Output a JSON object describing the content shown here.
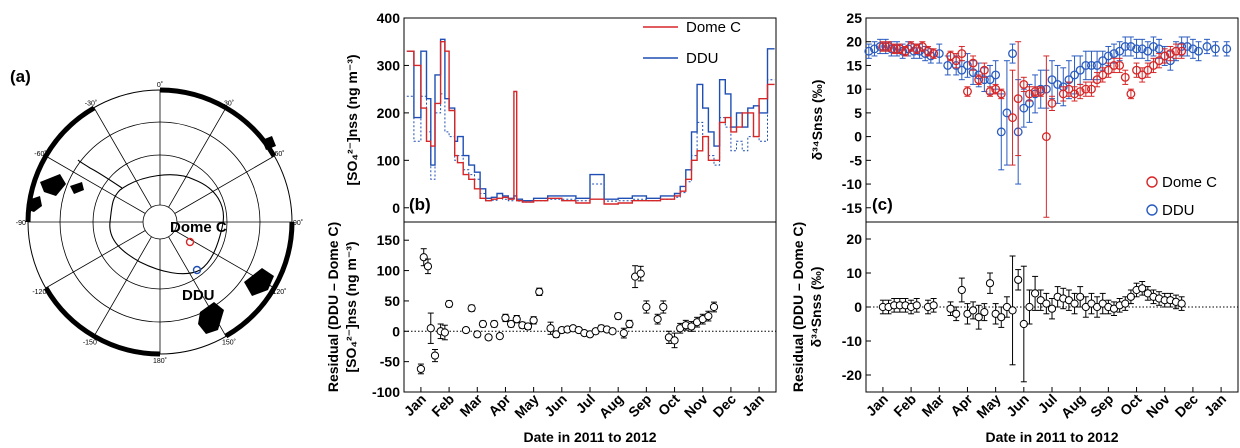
{
  "panels": {
    "a": {
      "label": "(a)"
    },
    "b": {
      "label": "(b)"
    },
    "c": {
      "label": "(c)"
    }
  },
  "map": {
    "station_1": "Dome C",
    "station_2": "DDU",
    "lon_ticks": [
      "0˚",
      "30˚",
      "60˚",
      "90˚",
      "120˚",
      "150˚",
      "180˚",
      "-150˚",
      "-120˚",
      "-90˚",
      "-60˚",
      "-30˚"
    ],
    "colors": {
      "dome_c": "#d62728",
      "ddu": "#1f4fb4",
      "land": "#000000"
    }
  },
  "chart_data": [
    {
      "id": "b_top",
      "type": "line",
      "ylabel": "[SO₄²⁻]nss (ng m⁻³)",
      "ylim": [
        -30,
        400
      ],
      "yticks": [
        0,
        100,
        200,
        300,
        400
      ],
      "xlim": [
        -0.6,
        12.6
      ],
      "legend": {
        "placement": "top-right",
        "entries": [
          "Dome C",
          "DDU"
        ]
      },
      "series": [
        {
          "name": "Dome C",
          "color": "#d62728",
          "x": [
            -0.5,
            -0.25,
            0,
            0.2,
            0.35,
            0.5,
            0.7,
            0.85,
            1.0,
            1.2,
            1.3,
            1.5,
            1.7,
            1.9,
            2.1,
            2.3,
            2.5,
            2.7,
            2.9,
            3.1,
            3.3,
            3.4,
            3.6,
            4.0,
            4.5,
            5.0,
            5.5,
            6.0,
            6.5,
            7.0,
            7.5,
            8.0,
            8.5,
            9.0,
            9.2,
            9.4,
            9.6,
            9.8,
            10.0,
            10.2,
            10.4,
            10.6,
            10.8,
            11.0,
            11.2,
            11.4,
            11.6,
            11.8,
            12.0,
            12.3
          ],
          "values": [
            330,
            300,
            210,
            140,
            130,
            220,
            350,
            330,
            205,
            110,
            95,
            70,
            60,
            40,
            20,
            15,
            18,
            20,
            22,
            18,
            245,
            15,
            12,
            15,
            20,
            15,
            10,
            18,
            8,
            10,
            15,
            15,
            18,
            25,
            35,
            60,
            100,
            120,
            150,
            100,
            100,
            180,
            190,
            160,
            170,
            200,
            200,
            150,
            230,
            260
          ]
        },
        {
          "name": "DDU",
          "color": "#1f4fb4",
          "x": [
            -0.5,
            -0.25,
            0,
            0.2,
            0.35,
            0.5,
            0.7,
            0.85,
            1.0,
            1.2,
            1.3,
            1.5,
            1.7,
            1.9,
            2.1,
            2.3,
            2.5,
            2.7,
            2.9,
            3.1,
            3.3,
            3.4,
            3.6,
            4.0,
            4.5,
            5.0,
            5.5,
            6.0,
            6.5,
            7.0,
            7.5,
            8.0,
            8.5,
            9.0,
            9.2,
            9.4,
            9.6,
            9.8,
            10.0,
            10.2,
            10.4,
            10.6,
            10.8,
            11.0,
            11.2,
            11.4,
            11.6,
            11.8,
            12.0,
            12.3
          ],
          "values": [
            330,
            190,
            330,
            230,
            90,
            280,
            355,
            230,
            210,
            140,
            150,
            110,
            90,
            75,
            40,
            20,
            22,
            30,
            25,
            20,
            25,
            18,
            15,
            20,
            25,
            25,
            20,
            70,
            18,
            20,
            25,
            20,
            25,
            30,
            45,
            80,
            160,
            260,
            210,
            160,
            130,
            270,
            240,
            170,
            200,
            170,
            210,
            215,
            200,
            335
          ]
        },
        {
          "name": "DDU (dotted)",
          "color": "#1f4fb4",
          "x": [
            -0.5,
            -0.25,
            0,
            0.2,
            0.35,
            0.5,
            0.7,
            0.85,
            1.0,
            1.2,
            1.3,
            1.5,
            1.7,
            1.9,
            2.1,
            2.3,
            2.5,
            2.7,
            2.9,
            3.1,
            3.3,
            3.4,
            3.6,
            4.0,
            4.5,
            5.0,
            5.5,
            6.0,
            6.5,
            7.0,
            7.5,
            8.0,
            8.5,
            9.0,
            9.2,
            9.4,
            9.6,
            9.8,
            10.0,
            10.2,
            10.4,
            10.6,
            10.8,
            11.0,
            11.2,
            11.4,
            11.6,
            11.8,
            12.0,
            12.3
          ],
          "values": [
            235,
            140,
            235,
            160,
            60,
            200,
            240,
            160,
            150,
            100,
            110,
            80,
            70,
            60,
            30,
            15,
            16,
            20,
            18,
            15,
            20,
            14,
            12,
            15,
            18,
            18,
            15,
            50,
            14,
            15,
            18,
            15,
            18,
            22,
            32,
            55,
            110,
            180,
            150,
            110,
            90,
            190,
            170,
            120,
            140,
            120,
            150,
            150,
            140,
            270
          ]
        }
      ]
    },
    {
      "id": "b_bottom",
      "type": "scatter",
      "xlabel": "Date in 2011 to 2012",
      "ylabel": "Residual (DDU – Dome C)",
      "ylabel2": "[SO₄²⁻]nss (ng m⁻³)",
      "ylim": [
        -100,
        180
      ],
      "yticks": [
        -100,
        -50,
        0,
        50,
        100,
        150
      ],
      "categories": [
        "Jan",
        "Feb",
        "Mar",
        "Apr",
        "May",
        "Jun",
        "Jul",
        "Aug",
        "Sep",
        "Oct",
        "Nov",
        "Dec",
        "Jan"
      ],
      "series": [
        {
          "name": "Residual",
          "color": "#000000",
          "x": [
            0.0,
            0.1,
            0.25,
            0.35,
            0.5,
            0.7,
            0.85,
            1.0,
            1.6,
            1.8,
            2.0,
            2.2,
            2.4,
            2.6,
            2.8,
            3.0,
            3.2,
            3.4,
            3.6,
            3.8,
            4.0,
            4.2,
            4.6,
            4.8,
            5.0,
            5.2,
            5.4,
            5.6,
            5.8,
            6.0,
            6.2,
            6.4,
            6.6,
            6.8,
            7.0,
            7.2,
            7.4,
            7.6,
            7.8,
            8.0,
            8.4,
            8.6,
            8.8,
            9.0,
            9.2,
            9.4,
            9.6,
            9.8,
            10.0,
            10.2,
            10.4
          ],
          "values": [
            -62,
            122,
            107,
            5,
            -40,
            0,
            -2,
            45,
            2,
            38,
            -5,
            12,
            -10,
            12,
            -8,
            22,
            12,
            20,
            10,
            8,
            18,
            65,
            5,
            -5,
            2,
            3,
            5,
            2,
            -3,
            -5,
            0,
            5,
            3,
            0,
            25,
            -3,
            12,
            90,
            95,
            40,
            20,
            40,
            -10,
            -15,
            5,
            10,
            8,
            15,
            20,
            25,
            40
          ],
          "errors": [
            8,
            14,
            12,
            25,
            10,
            12,
            12,
            5,
            3,
            5,
            4,
            5,
            4,
            5,
            4,
            6,
            5,
            6,
            5,
            5,
            6,
            6,
            10,
            5,
            4,
            4,
            4,
            4,
            4,
            4,
            4,
            5,
            4,
            4,
            5,
            8,
            6,
            18,
            12,
            10,
            8,
            10,
            10,
            12,
            8,
            8,
            8,
            8,
            8,
            8,
            8
          ]
        }
      ]
    },
    {
      "id": "c_top",
      "type": "scatter",
      "ylabel": "δ³⁴Snss (‰)",
      "ylim": [
        -18,
        25
      ],
      "yticks": [
        -15,
        -10,
        -5,
        0,
        5,
        10,
        15,
        20,
        25
      ],
      "legend": {
        "placement": "bottom-right",
        "entries": [
          "Dome C",
          "DDU"
        ]
      },
      "series": [
        {
          "name": "Dome C",
          "color": "#d62728",
          "x": [
            0.0,
            0.2,
            0.4,
            0.6,
            0.8,
            1.0,
            1.2,
            1.4,
            1.6,
            1.8,
            2.4,
            2.6,
            2.8,
            3.0,
            3.2,
            3.4,
            3.6,
            3.8,
            4.0,
            4.2,
            4.6,
            4.8,
            5.0,
            5.2,
            5.4,
            5.6,
            5.8,
            6.0,
            6.4,
            6.6,
            6.8,
            7.0,
            7.2,
            7.4,
            7.6,
            7.8,
            8.0,
            8.2,
            8.4,
            8.6,
            8.8,
            9.0,
            9.2,
            9.4,
            9.6,
            9.8,
            10.0,
            10.2,
            10.4,
            10.6
          ],
          "values": [
            19,
            19,
            18.5,
            18.5,
            18,
            19,
            18.5,
            19,
            18,
            17.5,
            17,
            16,
            17.5,
            9.5,
            15.5,
            12,
            14,
            9.5,
            10,
            9,
            4,
            8,
            11,
            9,
            9.5,
            9.5,
            0,
            7,
            9,
            10,
            9,
            9.5,
            10,
            10,
            12,
            13,
            14,
            15,
            15,
            12.5,
            9,
            14,
            13,
            14,
            15,
            16,
            17,
            17.5,
            18,
            18
          ],
          "errors": [
            1,
            1,
            1,
            1,
            1,
            1,
            1,
            1,
            1,
            1,
            1,
            1.5,
            1.5,
            1,
            1.5,
            1,
            1.5,
            1,
            1,
            1,
            10,
            12,
            1.5,
            1.5,
            1,
            1,
            17,
            1.5,
            1.5,
            1.5,
            1.5,
            1.5,
            1.5,
            1.5,
            1.5,
            1.5,
            1.5,
            1.5,
            1.5,
            1.5,
            1,
            1.5,
            1.5,
            1.5,
            1.5,
            1.5,
            1.5,
            1.5,
            1.5,
            1.5
          ]
        },
        {
          "name": "DDU",
          "color": "#2a5cc0",
          "x": [
            -0.5,
            -0.3,
            -0.1,
            0.1,
            0.3,
            0.5,
            0.7,
            0.9,
            1.1,
            1.3,
            1.5,
            1.7,
            2.0,
            2.3,
            2.6,
            2.8,
            3.0,
            3.2,
            3.4,
            3.6,
            3.8,
            4.0,
            4.2,
            4.4,
            4.6,
            4.8,
            5.0,
            5.2,
            5.4,
            5.6,
            5.8,
            6.0,
            6.2,
            6.4,
            6.6,
            6.8,
            7.0,
            7.2,
            7.4,
            7.6,
            7.8,
            8.0,
            8.2,
            8.4,
            8.6,
            8.8,
            9.0,
            9.2,
            9.4,
            9.6,
            9.8,
            10.0,
            10.2,
            10.4,
            10.6,
            10.8,
            11.0,
            11.2,
            11.5,
            11.8,
            12.2
          ],
          "values": [
            18,
            18.5,
            19,
            19,
            18.5,
            18.5,
            18,
            18.5,
            18,
            18,
            17.5,
            17,
            17.5,
            15,
            15,
            14,
            15,
            13.5,
            13,
            12,
            12,
            13,
            1,
            5,
            17.5,
            1,
            6,
            7,
            9,
            10,
            10,
            12,
            11,
            10.5,
            12,
            13,
            14,
            15,
            15,
            15,
            16,
            17,
            17.5,
            18,
            19,
            19,
            18.5,
            18.5,
            18,
            19,
            18.5,
            17,
            16,
            18,
            19,
            19,
            18.5,
            18,
            19,
            18.5,
            18.5
          ],
          "errors": [
            1.5,
            1.5,
            1.5,
            1.5,
            1.5,
            1.5,
            1.5,
            1.5,
            1.5,
            1.5,
            1.5,
            1.5,
            2,
            2,
            2,
            2,
            2.5,
            2.5,
            2.5,
            2.5,
            3,
            3,
            8,
            11,
            2,
            11,
            4,
            4,
            4,
            4,
            4,
            4,
            4,
            4,
            4,
            4,
            3,
            3,
            3,
            3,
            2,
            2,
            2,
            2,
            2,
            2,
            2,
            2,
            2,
            2,
            2,
            2,
            2,
            2,
            2,
            2,
            2,
            2,
            1.5,
            1.5,
            1.5
          ]
        }
      ]
    },
    {
      "id": "c_bottom",
      "type": "scatter",
      "xlabel": "Date in 2011 to 2012",
      "ylabel": "Residual (DDU – Dome C)",
      "ylabel2": "δ³⁴Snss (‰)",
      "ylim": [
        -25,
        25
      ],
      "yticks": [
        -20,
        -10,
        0,
        10,
        20
      ],
      "categories": [
        "Jan",
        "Feb",
        "Mar",
        "Apr",
        "May",
        "Jun",
        "Jul",
        "Aug",
        "Sep",
        "Oct",
        "Nov",
        "Dec",
        "Jan"
      ],
      "series": [
        {
          "name": "Residual",
          "color": "#000000",
          "x": [
            0.0,
            0.2,
            0.4,
            0.6,
            0.8,
            1.0,
            1.2,
            1.6,
            1.8,
            2.4,
            2.6,
            2.8,
            3.0,
            3.2,
            3.4,
            3.6,
            3.8,
            4.0,
            4.2,
            4.4,
            4.6,
            4.8,
            5.0,
            5.2,
            5.4,
            5.6,
            5.8,
            6.0,
            6.2,
            6.4,
            6.6,
            6.8,
            7.0,
            7.2,
            7.4,
            7.6,
            7.8,
            8.0,
            8.2,
            8.4,
            8.6,
            8.8,
            9.0,
            9.2,
            9.4,
            9.6,
            9.8,
            10.0,
            10.2,
            10.4,
            10.6
          ],
          "values": [
            0,
            0,
            0.5,
            0.5,
            0.5,
            0,
            0.5,
            0,
            0.5,
            -0.5,
            -2,
            5,
            -2,
            -1,
            -3,
            -1.5,
            7,
            -2,
            -3,
            0,
            -1,
            8,
            -5,
            0,
            4,
            2,
            1,
            -0.5,
            3,
            2.5,
            2,
            1,
            3,
            0,
            1,
            0,
            1,
            0,
            -0.5,
            0.5,
            1,
            3,
            5,
            5.5,
            4,
            3,
            2.5,
            2,
            2,
            1.5,
            1
          ],
          "errors": [
            2,
            2,
            2,
            2,
            2,
            2,
            2,
            2,
            2,
            2,
            2,
            3.5,
            3,
            2.5,
            3.5,
            2.5,
            3,
            3,
            3,
            3,
            16,
            3,
            17,
            5,
            5,
            3,
            3,
            3,
            3,
            3,
            3,
            3,
            3,
            3,
            3,
            3,
            3,
            2,
            2,
            2,
            2,
            2,
            2,
            2,
            2,
            2,
            2,
            2,
            2,
            2,
            2
          ]
        }
      ]
    }
  ]
}
